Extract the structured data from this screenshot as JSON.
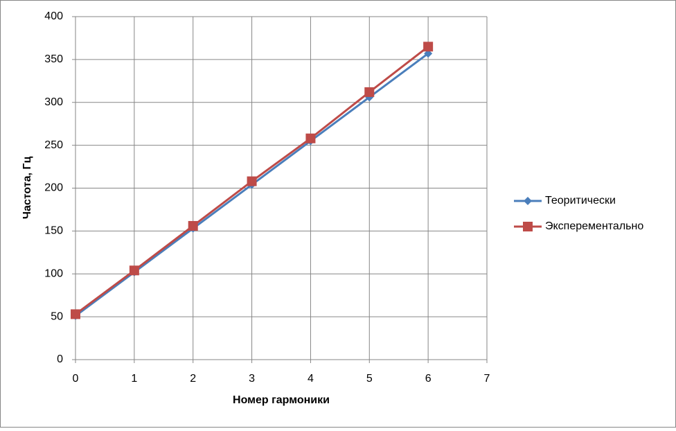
{
  "chart_data": {
    "type": "scatter-line",
    "x_label": "Номер гармоники",
    "y_label": "Частота, Гц",
    "xlim": [
      0,
      7
    ],
    "xticks": [
      0,
      1,
      2,
      3,
      4,
      5,
      6,
      7
    ],
    "ylim": [
      0,
      400
    ],
    "yticks": [
      0,
      50,
      100,
      150,
      200,
      250,
      300,
      350,
      400
    ],
    "grid": true,
    "legend": "right",
    "series": [
      {
        "name": "Теоритически",
        "color": "#4a7ebb",
        "marker": "diamond",
        "x": [
          0,
          1,
          2,
          3,
          4,
          5,
          6
        ],
        "values": [
          51,
          102,
          153,
          204,
          255,
          306,
          357
        ]
      },
      {
        "name": "Эксперементально",
        "color": "#be4b48",
        "marker": "square",
        "x": [
          0,
          1,
          2,
          3,
          4,
          5,
          6
        ],
        "values": [
          53,
          104,
          156,
          208,
          258,
          312,
          365
        ]
      }
    ]
  }
}
